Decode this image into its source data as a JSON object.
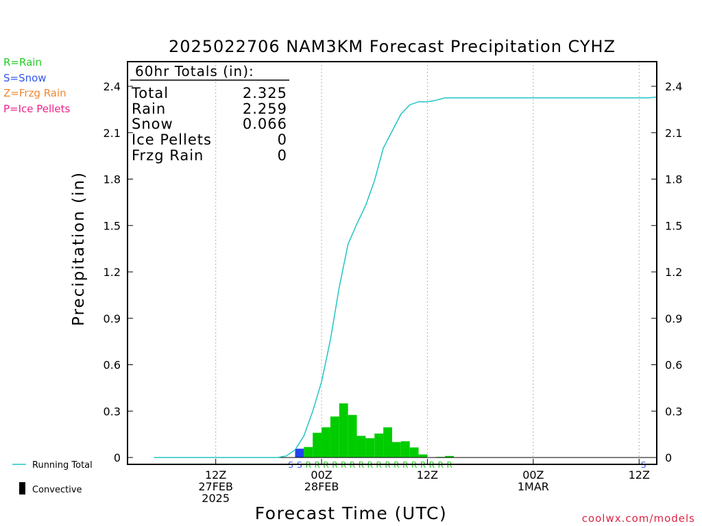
{
  "title": "2025022706 NAM3KM Forecast Precipitation CYHZ",
  "legend_types": [
    {
      "text": "R=Rain",
      "color": "#22cc22"
    },
    {
      "text": "S=Snow",
      "color": "#3355ee"
    },
    {
      "text": "Z=Frzg Rain",
      "color": "#ee8833"
    },
    {
      "text": "P=Ice Pellets",
      "color": "#ee2288"
    }
  ],
  "legend_bottom": {
    "running_total": "Running Total",
    "convective": "Convective"
  },
  "totals": {
    "header": "60hr Totals (in):",
    "rows": [
      {
        "label": "Total",
        "value": "2.325"
      },
      {
        "label": "Rain",
        "value": "2.259"
      },
      {
        "label": "Snow",
        "value": "0.066"
      },
      {
        "label": "Ice Pellets",
        "value": "0"
      },
      {
        "label": "Frzg Rain",
        "value": "0"
      }
    ]
  },
  "watermark": "coolwx.com/models",
  "colors": {
    "rain": "#00cc00",
    "snow": "#2244ee",
    "running_total": "#22c4c4",
    "rain_code": "#22cc22",
    "snow_code": "#3355ee"
  },
  "chart_data": {
    "type": "bar",
    "title": "2025022706 NAM3KM Forecast Precipitation CYHZ",
    "xlabel": "Forecast Time (UTC)",
    "ylabel": "Precipitation (in)",
    "xlim_hours": [
      -4,
      56
    ],
    "ylim": [
      0,
      2.56
    ],
    "yticks": [
      0,
      0.3,
      0.6,
      0.9,
      1.2,
      1.5,
      1.8,
      2.1,
      2.4
    ],
    "ytick_labels": [
      "0",
      "0.3",
      "0.6",
      "0.9",
      "1.2",
      "1.5",
      "1.8",
      "2.1",
      "2.4"
    ],
    "grid": "vertical dotted at 12Z/00Z",
    "xticks": [
      {
        "hour": 6,
        "lines": [
          "12Z",
          "27FEB",
          "2025"
        ]
      },
      {
        "hour": 18,
        "lines": [
          "00Z",
          "28FEB"
        ]
      },
      {
        "hour": 30,
        "lines": [
          "12Z"
        ]
      },
      {
        "hour": 42,
        "lines": [
          "00Z",
          "1MAR"
        ]
      },
      {
        "hour": 54,
        "lines": [
          "12Z"
        ]
      }
    ],
    "bar_width_hours": 1,
    "bars": [
      {
        "start": 15,
        "value": 0.057,
        "type": "snow"
      },
      {
        "start": 16,
        "value": 0.068,
        "type": "rain"
      },
      {
        "start": 17,
        "value": 0.16,
        "type": "rain"
      },
      {
        "start": 18,
        "value": 0.195,
        "type": "rain"
      },
      {
        "start": 19,
        "value": 0.265,
        "type": "rain"
      },
      {
        "start": 20,
        "value": 0.35,
        "type": "rain"
      },
      {
        "start": 21,
        "value": 0.275,
        "type": "rain"
      },
      {
        "start": 22,
        "value": 0.14,
        "type": "rain"
      },
      {
        "start": 23,
        "value": 0.125,
        "type": "rain"
      },
      {
        "start": 24,
        "value": 0.155,
        "type": "rain"
      },
      {
        "start": 25,
        "value": 0.195,
        "type": "rain"
      },
      {
        "start": 26,
        "value": 0.1,
        "type": "rain"
      },
      {
        "start": 27,
        "value": 0.105,
        "type": "rain"
      },
      {
        "start": 28,
        "value": 0.065,
        "type": "rain"
      },
      {
        "start": 29,
        "value": 0.02,
        "type": "rain"
      },
      {
        "start": 31,
        "value": 0.004,
        "type": "rain"
      },
      {
        "start": 32,
        "value": 0.01,
        "type": "rain"
      }
    ],
    "running_total": {
      "name": "Running Total",
      "x_hours": [
        -1,
        13,
        14,
        15,
        16,
        17,
        18,
        19,
        20,
        21,
        22,
        23,
        24,
        25,
        26,
        27,
        28,
        29,
        30,
        31,
        32,
        55,
        56
      ],
      "y": [
        0,
        0,
        0.01,
        0.05,
        0.14,
        0.3,
        0.49,
        0.76,
        1.1,
        1.38,
        1.51,
        1.63,
        1.79,
        2.0,
        2.11,
        2.22,
        2.28,
        2.3,
        2.3,
        2.31,
        2.325,
        2.325,
        2.33
      ]
    },
    "type_codes": [
      {
        "hour": 14.5,
        "code": "S",
        "type": "snow"
      },
      {
        "hour": 15.5,
        "code": "S",
        "type": "snow"
      },
      {
        "hour": 16.5,
        "code": "R",
        "type": "rain"
      },
      {
        "hour": 17.5,
        "code": "R",
        "type": "rain"
      },
      {
        "hour": 18.5,
        "code": "R",
        "type": "rain"
      },
      {
        "hour": 19.5,
        "code": "R",
        "type": "rain"
      },
      {
        "hour": 20.5,
        "code": "R",
        "type": "rain"
      },
      {
        "hour": 21.5,
        "code": "R",
        "type": "rain"
      },
      {
        "hour": 22.5,
        "code": "R",
        "type": "rain"
      },
      {
        "hour": 23.5,
        "code": "R",
        "type": "rain"
      },
      {
        "hour": 24.5,
        "code": "R",
        "type": "rain"
      },
      {
        "hour": 25.5,
        "code": "R",
        "type": "rain"
      },
      {
        "hour": 26.5,
        "code": "R",
        "type": "rain"
      },
      {
        "hour": 27.5,
        "code": "R",
        "type": "rain"
      },
      {
        "hour": 28.5,
        "code": "R",
        "type": "rain"
      },
      {
        "hour": 29.5,
        "code": "R",
        "type": "rain"
      },
      {
        "hour": 30.5,
        "code": "R",
        "type": "rain"
      },
      {
        "hour": 31.5,
        "code": "R",
        "type": "rain"
      },
      {
        "hour": 32.5,
        "code": "R",
        "type": "rain"
      },
      {
        "hour": 54.5,
        "code": "S",
        "type": "snow"
      }
    ]
  }
}
